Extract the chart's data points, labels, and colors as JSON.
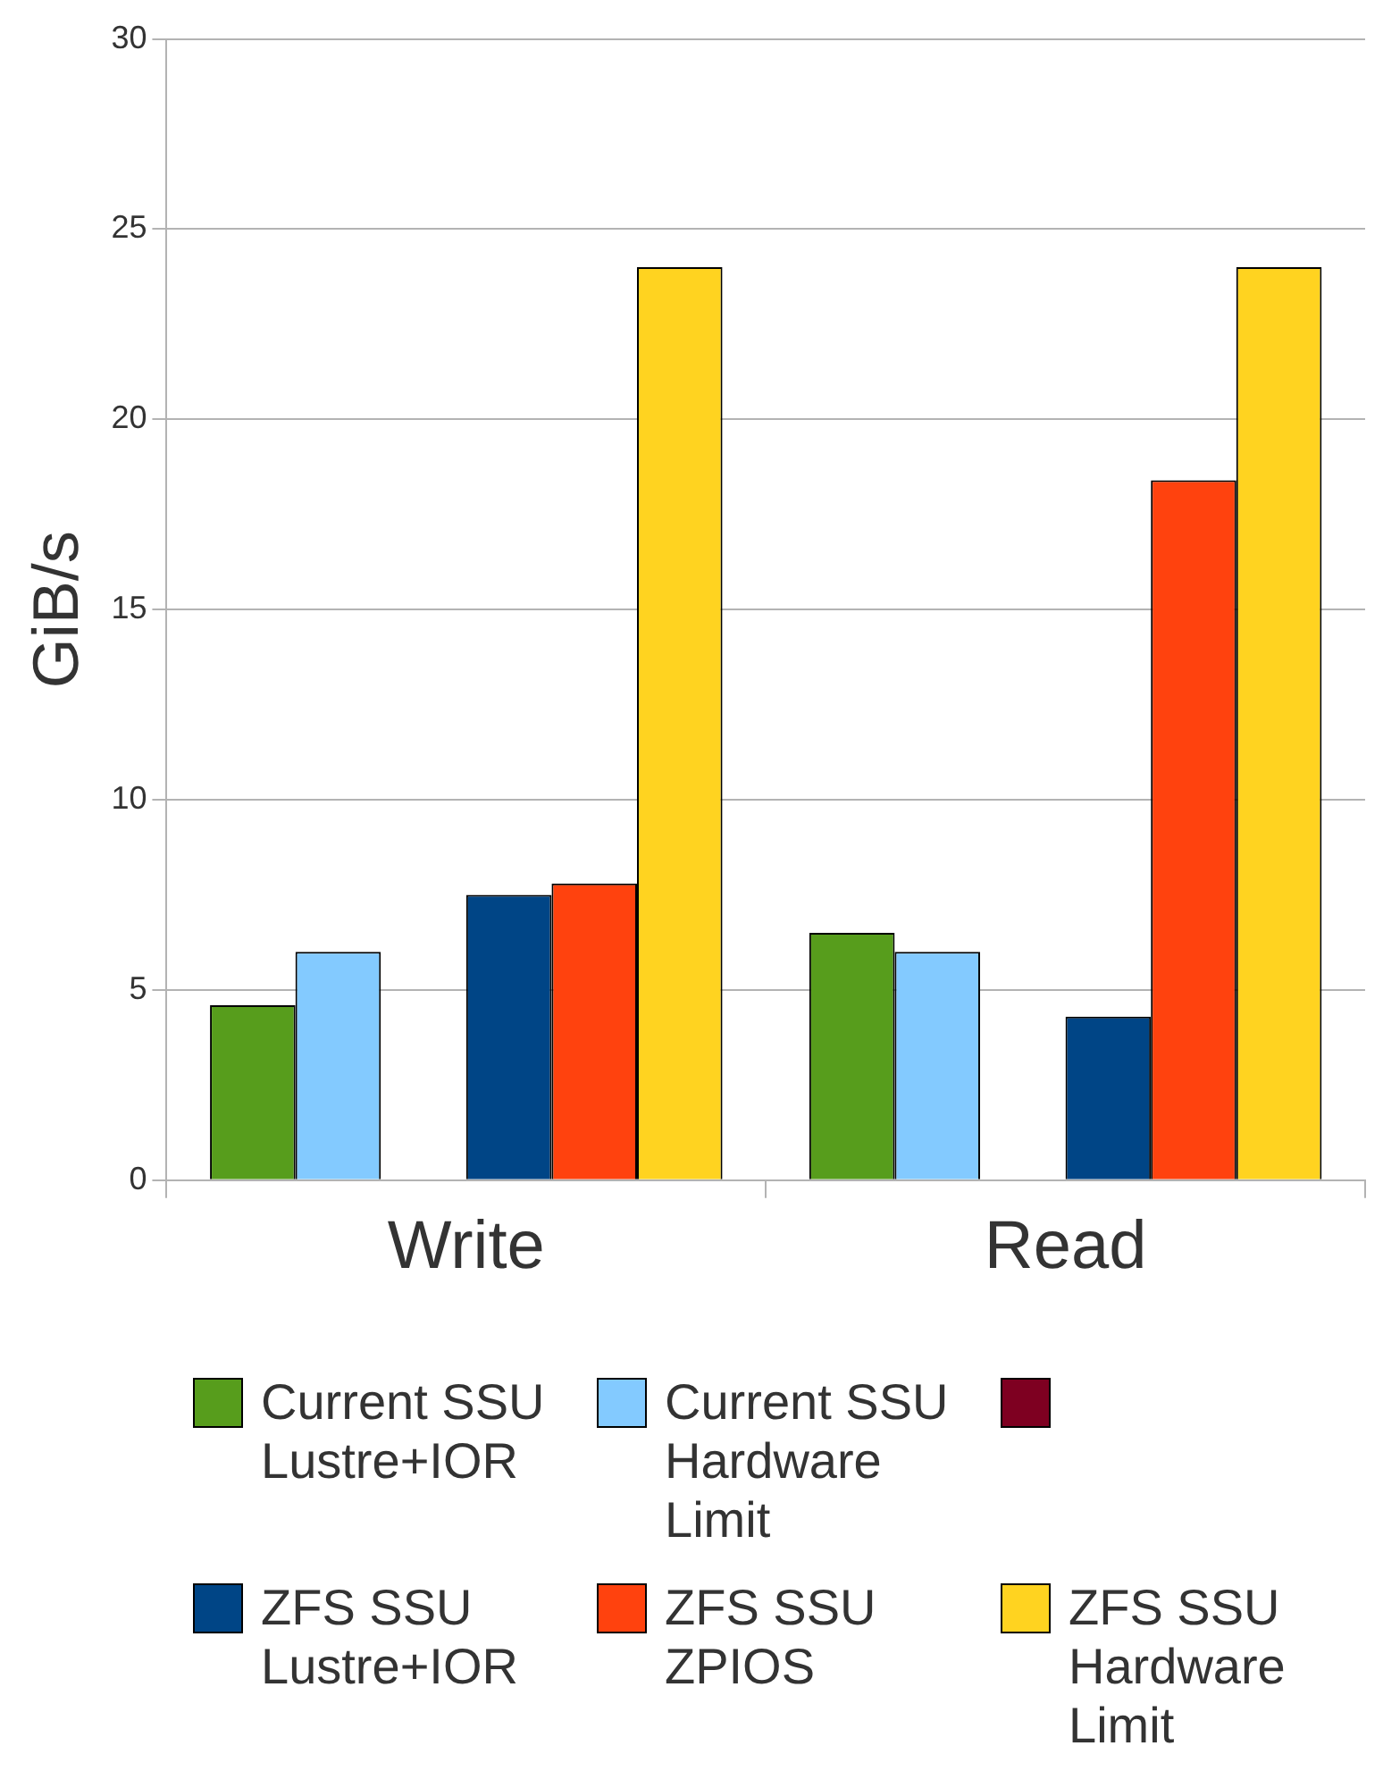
{
  "chart_data": {
    "type": "bar",
    "ylabel": "GiB/s",
    "categories": [
      "Write",
      "Read"
    ],
    "series": [
      {
        "name": "Current SSU Lustre+IOR",
        "color": "#579d1c",
        "values": [
          4.6,
          6.5
        ]
      },
      {
        "name": "Current SSU Hardware Limit",
        "color": "#83caff",
        "values": [
          6.0,
          6.0
        ]
      },
      {
        "color": "#7e0021",
        "values": [
          null,
          null
        ]
      },
      {
        "name": "ZFS SSU Lustre+IOR",
        "color": "#004586",
        "values": [
          7.5,
          4.3
        ]
      },
      {
        "name": "ZFS SSU ZPIOS",
        "color": "#ff420e",
        "values": [
          7.8,
          18.4
        ]
      },
      {
        "name": "ZFS SSU Hardware Limit",
        "color": "#ffd320",
        "values": [
          24.0,
          24.0
        ]
      }
    ],
    "ylim": [
      0,
      30
    ],
    "yticks": [
      0,
      5,
      10,
      15,
      20,
      25,
      30
    ],
    "grid": "y",
    "legend": "bottom"
  }
}
